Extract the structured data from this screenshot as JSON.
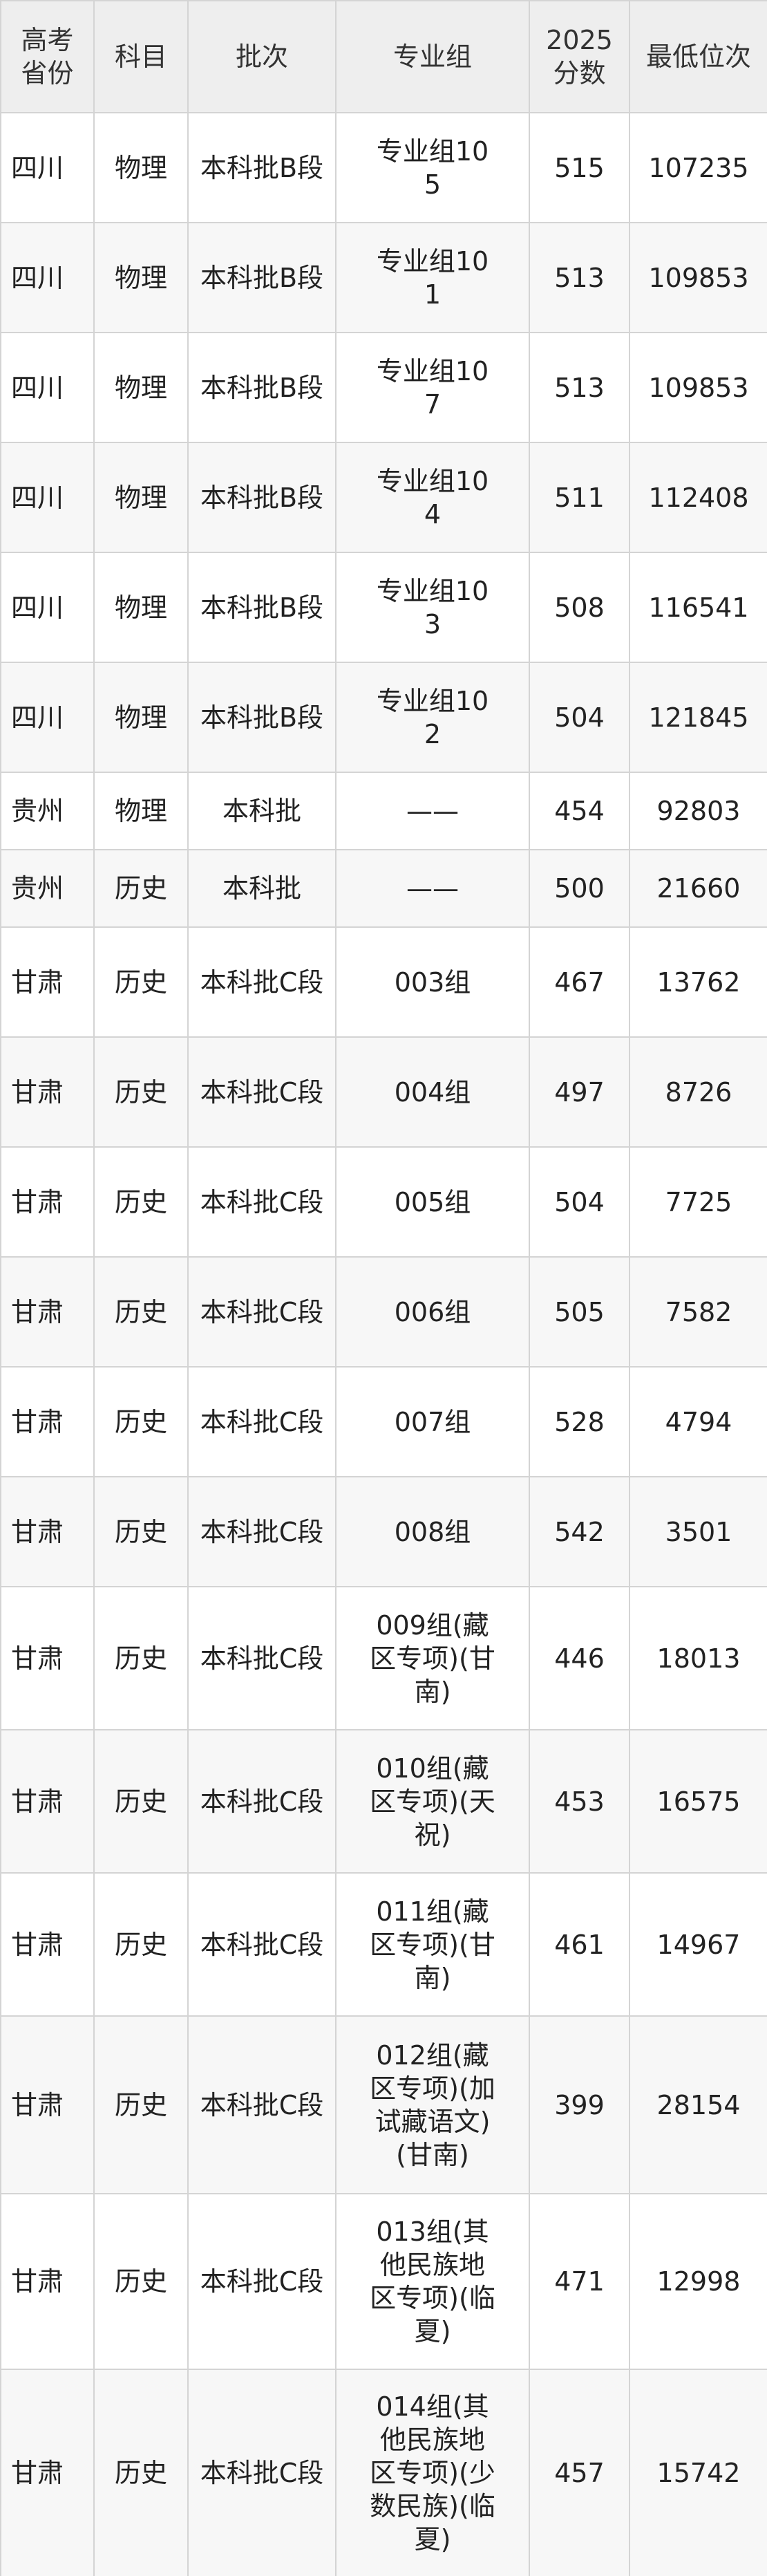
{
  "table": {
    "header": [
      "高考省份",
      "科目",
      "批次",
      "专业组",
      "2025分数",
      "最低位次"
    ],
    "rows": [
      [
        "四川",
        "物理",
        "本科批B段",
        "专业组105",
        "515",
        "107235"
      ],
      [
        "四川",
        "物理",
        "本科批B段",
        "专业组101",
        "513",
        "109853"
      ],
      [
        "四川",
        "物理",
        "本科批B段",
        "专业组107",
        "513",
        "109853"
      ],
      [
        "四川",
        "物理",
        "本科批B段",
        "专业组104",
        "511",
        "112408"
      ],
      [
        "四川",
        "物理",
        "本科批B段",
        "专业组103",
        "508",
        "116541"
      ],
      [
        "四川",
        "物理",
        "本科批B段",
        "专业组102",
        "504",
        "121845"
      ],
      [
        "贵州",
        "物理",
        "本科批",
        "——",
        "454",
        "92803"
      ],
      [
        "贵州",
        "历史",
        "本科批",
        "——",
        "500",
        "21660"
      ],
      [
        "甘肃",
        "历史",
        "本科批C段",
        "003组",
        "467",
        "13762"
      ],
      [
        "甘肃",
        "历史",
        "本科批C段",
        "004组",
        "497",
        "8726"
      ],
      [
        "甘肃",
        "历史",
        "本科批C段",
        "005组",
        "504",
        "7725"
      ],
      [
        "甘肃",
        "历史",
        "本科批C段",
        "006组",
        "505",
        "7582"
      ],
      [
        "甘肃",
        "历史",
        "本科批C段",
        "007组",
        "528",
        "4794"
      ],
      [
        "甘肃",
        "历史",
        "本科批C段",
        "008组",
        "542",
        "3501"
      ],
      [
        "甘肃",
        "历史",
        "本科批C段",
        "009组(藏区专项)(甘南)",
        "446",
        "18013"
      ],
      [
        "甘肃",
        "历史",
        "本科批C段",
        "010组(藏区专项)(天祝)",
        "453",
        "16575"
      ],
      [
        "甘肃",
        "历史",
        "本科批C段",
        "011组(藏区专项)(甘南)",
        "461",
        "14967"
      ],
      [
        "甘肃",
        "历史",
        "本科批C段",
        "012组(藏区专项)(加试藏语文)(甘南)",
        "399",
        "28154"
      ],
      [
        "甘肃",
        "历史",
        "本科批C段",
        "013组(其他民族地区专项)(临夏)",
        "471",
        "12998"
      ],
      [
        "甘肃",
        "历史",
        "本科批C段",
        "014组(其他民族地区专项)(少数民族)(临夏)",
        "457",
        "15742"
      ]
    ]
  }
}
